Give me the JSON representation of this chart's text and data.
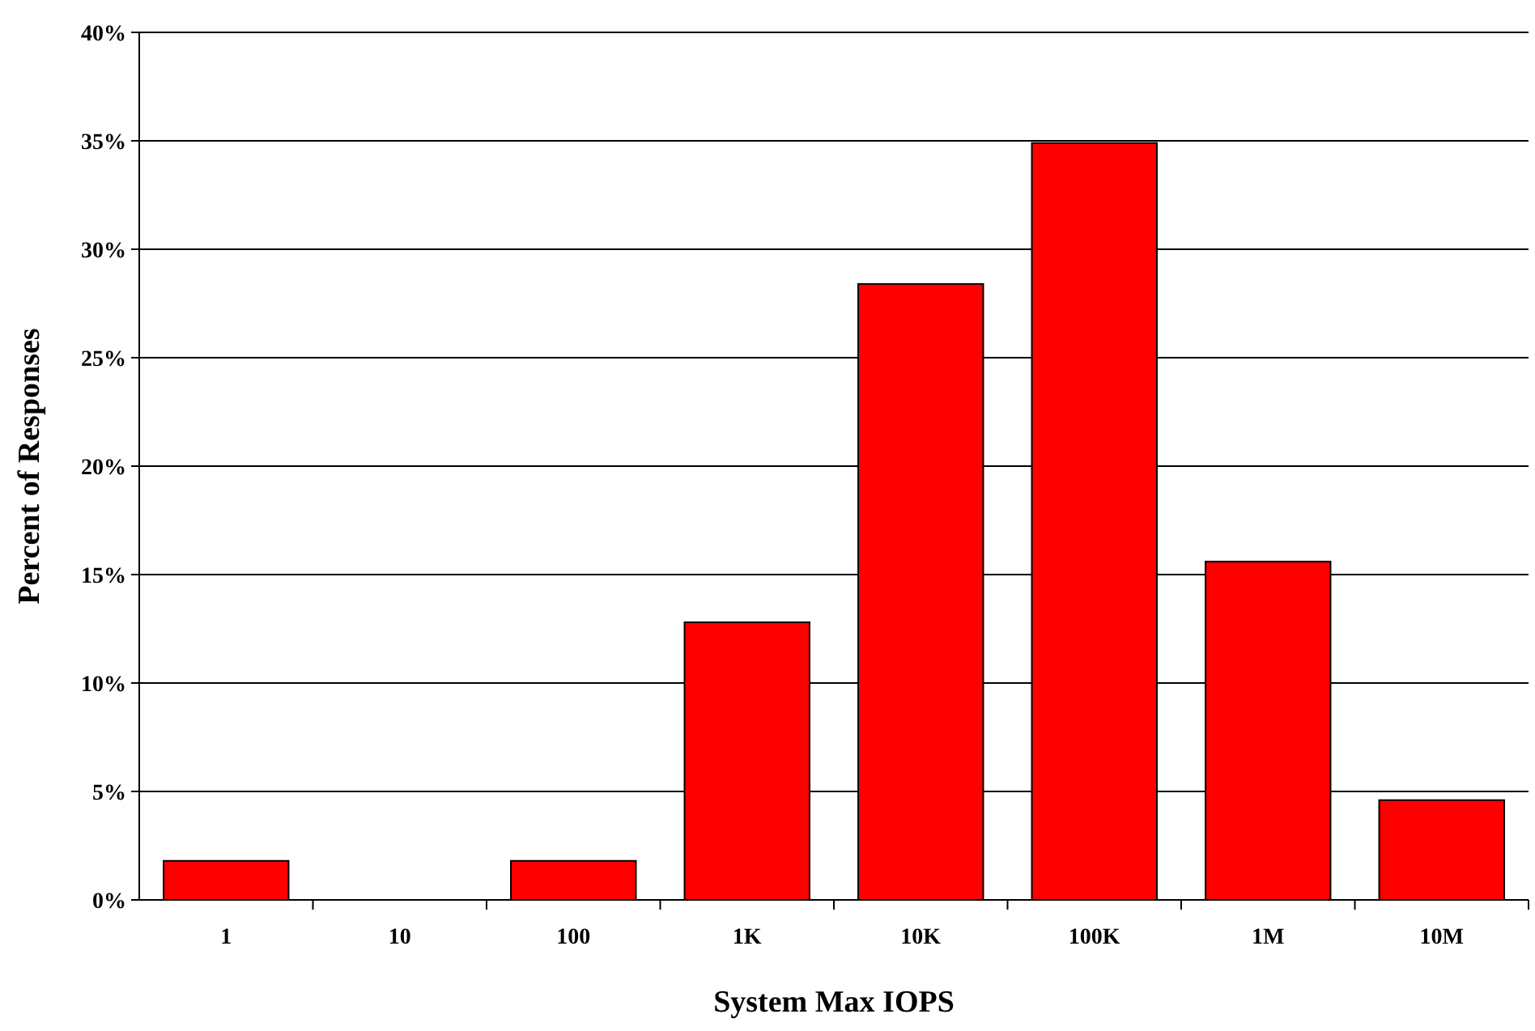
{
  "chart_data": {
    "type": "bar",
    "xlabel": "System Max IOPS",
    "ylabel": "Percent of Responses",
    "categories": [
      "1",
      "10",
      "100",
      "1K",
      "10K",
      "100K",
      "1M",
      "10M"
    ],
    "values": [
      1.8,
      0,
      1.8,
      12.8,
      28.4,
      34.9,
      15.6,
      4.6
    ],
    "color": "#ff0000",
    "ylim": [
      0,
      40
    ],
    "yticks": [
      {
        "value": 0,
        "label": "0%"
      },
      {
        "value": 5,
        "label": "5%"
      },
      {
        "value": 10,
        "label": "10%"
      },
      {
        "value": 15,
        "label": "15%"
      },
      {
        "value": 20,
        "label": "20%"
      },
      {
        "value": 25,
        "label": "25%"
      },
      {
        "value": 30,
        "label": "30%"
      },
      {
        "value": 35,
        "label": "35%"
      },
      {
        "value": 40,
        "label": "40%"
      }
    ],
    "grid": "y"
  }
}
